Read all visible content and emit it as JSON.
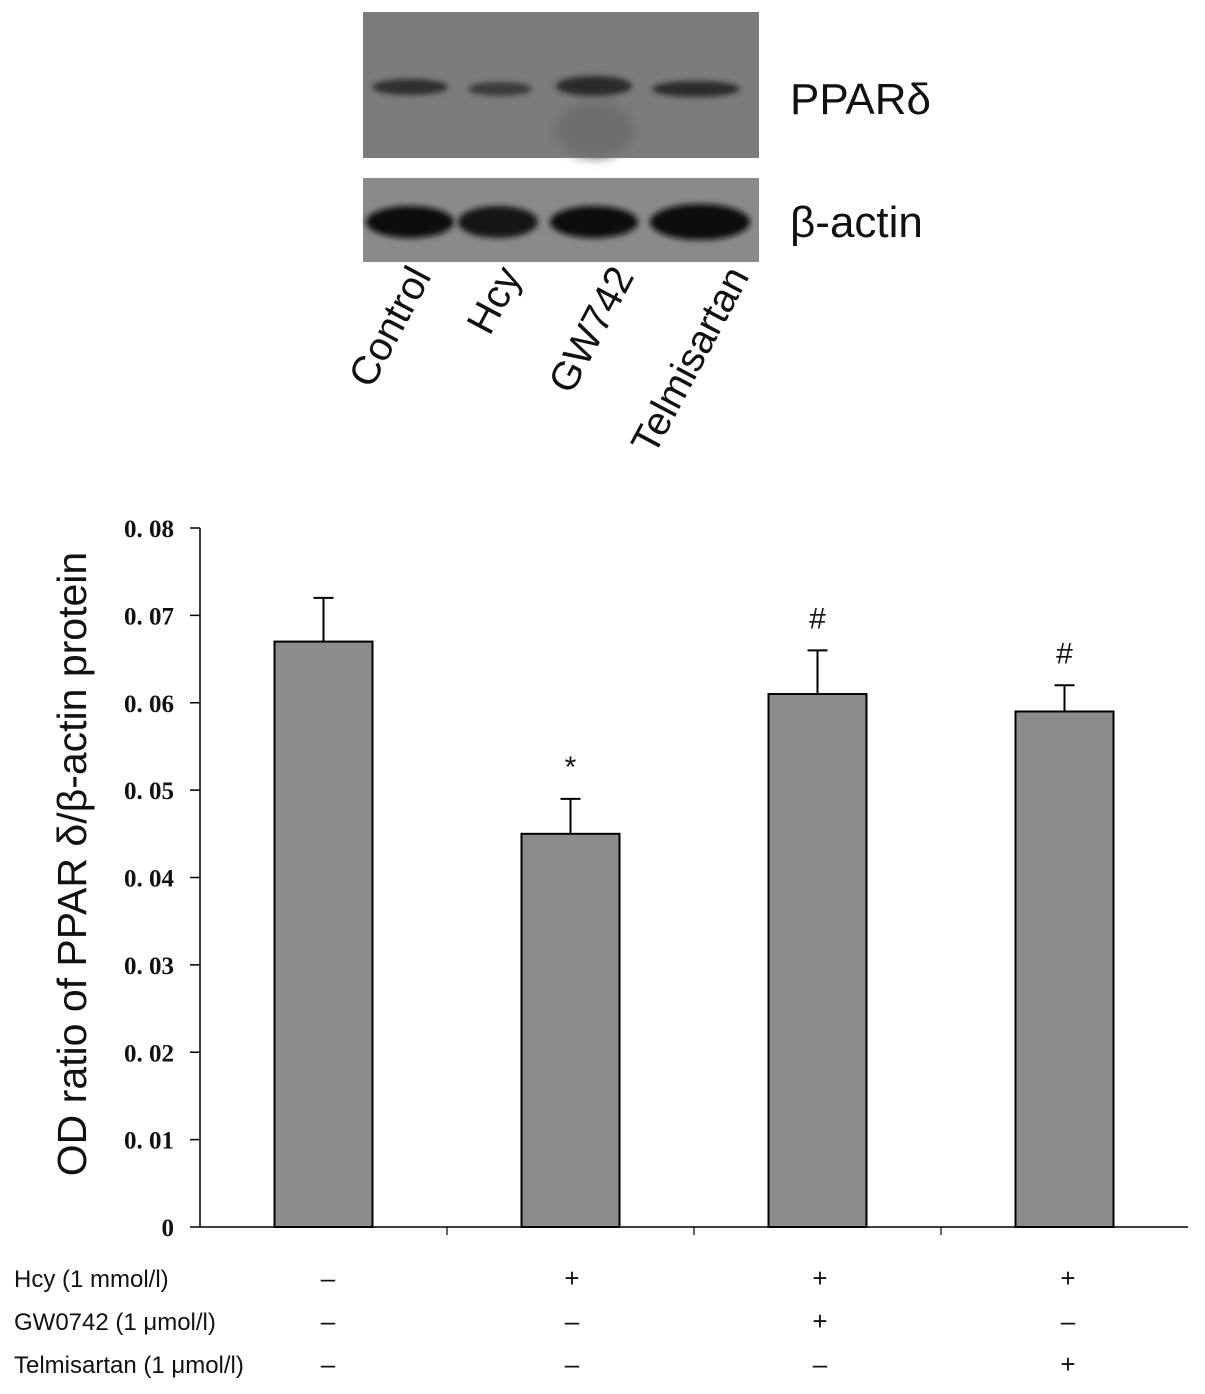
{
  "blot": {
    "band_labels": [
      "PPARδ",
      "β-actin"
    ],
    "lanes": [
      "Control",
      "Hcy",
      "GW742",
      "Telmisartan"
    ]
  },
  "chart_data": {
    "type": "bar",
    "categories": [
      "Control",
      "Hcy",
      "GW742",
      "Telmisartan"
    ],
    "values": [
      0.067,
      0.045,
      0.061,
      0.059
    ],
    "errors": [
      0.005,
      0.004,
      0.005,
      0.003
    ],
    "annotations": [
      "",
      "*",
      "#",
      "#"
    ],
    "ylabel": "OD ratio of PPAR δ/β-actin protein",
    "xlabel": "",
    "ylim": [
      0,
      0.08
    ],
    "yticks": [
      0,
      0.01,
      0.02,
      0.03,
      0.04,
      0.05,
      0.06,
      0.07,
      0.08
    ],
    "ytick_labels": [
      "0",
      "0. 01",
      "0. 02",
      "0. 03",
      "0. 04",
      "0. 05",
      "0. 06",
      "0. 07",
      "0. 08"
    ],
    "bar_color": "#8c8c8c",
    "grid": false
  },
  "treatments": [
    {
      "name": "Hcy (1 mmol/l)",
      "symbols": [
        "–",
        "+",
        "+",
        "+"
      ]
    },
    {
      "name": "GW0742 (1 μmol/l)",
      "symbols": [
        "–",
        "–",
        "+",
        "–"
      ]
    },
    {
      "name": "Telmisartan (1 μmol/l)",
      "symbols": [
        "–",
        "–",
        "–",
        "+"
      ]
    }
  ]
}
